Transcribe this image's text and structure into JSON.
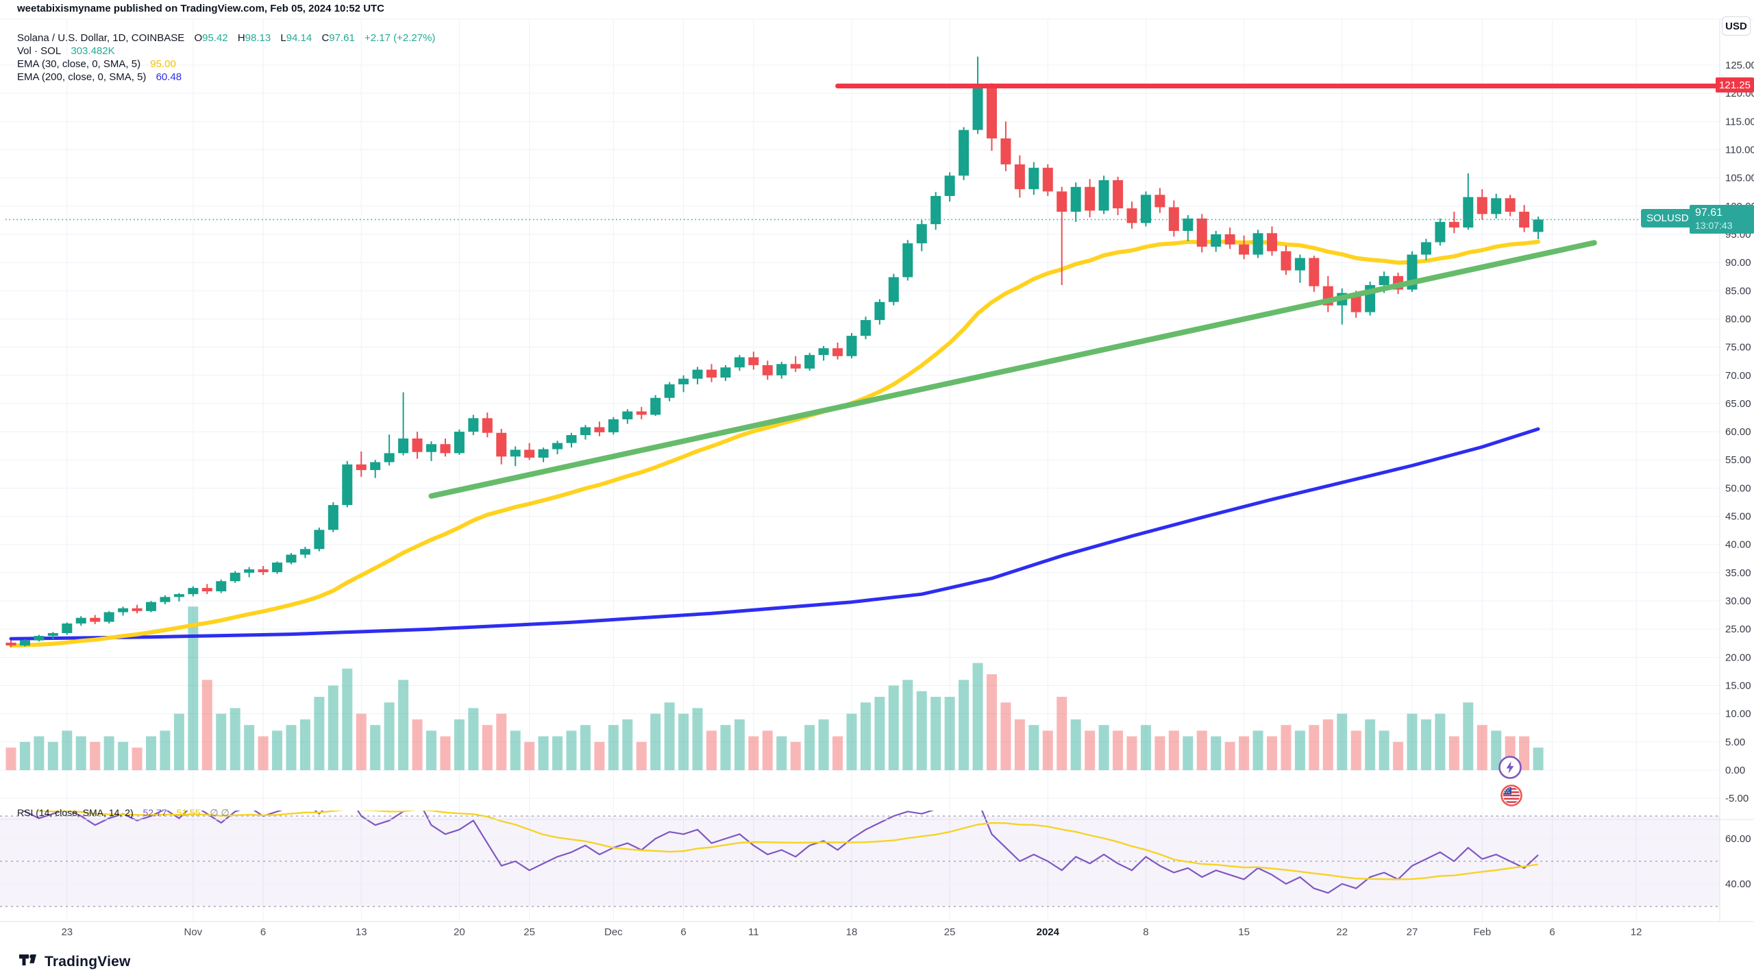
{
  "attribution": "weetabixismyname published on TradingView.com, Feb 05, 2024 10:52 UTC",
  "legend": {
    "symbol_title": "Solana / U.S. Dollar, 1D, COINBASE",
    "ohlc": [
      {
        "k": "O",
        "v": "95.42"
      },
      {
        "k": "H",
        "v": "98.13"
      },
      {
        "k": "L",
        "v": "94.14"
      },
      {
        "k": "C",
        "v": "97.61"
      }
    ],
    "change": "+2.17 (+2.27%)",
    "vol_label": "Vol · SOL",
    "vol_value": "303.482K",
    "ema30_label": "EMA (30, close, 0, SMA, 5)",
    "ema30_value": "95.00",
    "ema200_label": "EMA (200, close, 0, SMA, 5)",
    "ema200_value": "60.48"
  },
  "rsi_legend": {
    "label": "RSI (14, close, SMA, 14, 2)",
    "value": "52.77",
    "ma_value": "51.55",
    "extra": "∅  ∅"
  },
  "badges": {
    "usd": "USD",
    "resistance": "121.25",
    "symbol": "SOLUSD",
    "price": "97.61",
    "countdown": "13:07:43"
  },
  "footer": {
    "logo_text": "TradingView"
  },
  "colors": {
    "up": "#16a28c",
    "down": "#ef4d52",
    "vol_up": "#16a28c",
    "vol_down": "#ef5350",
    "ema30": "#ffd21e",
    "ema200": "#2d2df0",
    "rsi": "#7e57c2",
    "rsi_ma": "#f5d327",
    "resistance": "#f23645",
    "trend": "#66bb6a",
    "teal": "#2aa79a",
    "grid": "#eef1f7",
    "axis_text": "#363a45",
    "separator": "#e0e3eb",
    "rsi_band_fill": "#7e57c2"
  },
  "price_axis": {
    "min": -5,
    "max": 125,
    "step": 5
  },
  "rsi_axis": {
    "labels": [
      {
        "text": "60.00",
        "value": 60
      },
      {
        "text": "40.00",
        "value": 40
      }
    ]
  },
  "time_axis": {
    "labels": [
      {
        "text": "23",
        "index": 4,
        "bold": false
      },
      {
        "text": "Nov",
        "index": 13,
        "bold": false
      },
      {
        "text": "6",
        "index": 18,
        "bold": false
      },
      {
        "text": "13",
        "index": 25,
        "bold": false
      },
      {
        "text": "20",
        "index": 32,
        "bold": false
      },
      {
        "text": "25",
        "index": 37,
        "bold": false
      },
      {
        "text": "Dec",
        "index": 43,
        "bold": false
      },
      {
        "text": "6",
        "index": 48,
        "bold": false
      },
      {
        "text": "11",
        "index": 53,
        "bold": false
      },
      {
        "text": "18",
        "index": 60,
        "bold": false
      },
      {
        "text": "25",
        "index": 67,
        "bold": false
      },
      {
        "text": "2024",
        "index": 74,
        "bold": true
      },
      {
        "text": "8",
        "index": 81,
        "bold": false
      },
      {
        "text": "15",
        "index": 88,
        "bold": false
      },
      {
        "text": "22",
        "index": 95,
        "bold": false
      },
      {
        "text": "27",
        "index": 100,
        "bold": false
      },
      {
        "text": "Feb",
        "index": 105,
        "bold": false
      },
      {
        "text": "6",
        "index": 110,
        "bold": false
      },
      {
        "text": "12",
        "index": 116,
        "bold": false
      }
    ]
  },
  "chart_data": {
    "type": "candlestick",
    "title": "Solana / U.S. Dollar, 1D, COINBASE",
    "ylabel": "USD",
    "ylim": [
      -5,
      125
    ],
    "grid": true,
    "current_price": 97.61,
    "resistance": {
      "price": 121.3,
      "from_index": 59,
      "label": "121.25"
    },
    "trendline": {
      "from": {
        "index": 30,
        "price": 48.6
      },
      "to": {
        "index": 113,
        "price": 93.5
      }
    },
    "ema200_points": [
      [
        0,
        23.3
      ],
      [
        10,
        23.6
      ],
      [
        20,
        24.1
      ],
      [
        30,
        25.0
      ],
      [
        40,
        26.2
      ],
      [
        50,
        27.8
      ],
      [
        60,
        29.8
      ],
      [
        65,
        31.2
      ],
      [
        70,
        34.0
      ],
      [
        75,
        38.0
      ],
      [
        80,
        41.5
      ],
      [
        85,
        44.8
      ],
      [
        90,
        48.0
      ],
      [
        95,
        51.0
      ],
      [
        100,
        54.0
      ],
      [
        105,
        57.3
      ],
      [
        109,
        60.48
      ]
    ],
    "candles_format": [
      "open",
      "high",
      "low",
      "close",
      "volume_axis_units"
    ],
    "candles": [
      [
        22.6,
        23.0,
        21.8,
        22.1,
        4
      ],
      [
        22.1,
        23.2,
        21.9,
        23.0,
        5
      ],
      [
        23.0,
        24.0,
        22.8,
        23.8,
        6
      ],
      [
        23.8,
        24.5,
        23.2,
        24.3,
        5
      ],
      [
        24.3,
        26.2,
        24.0,
        26.0,
        7
      ],
      [
        26.0,
        27.3,
        25.6,
        27.0,
        6
      ],
      [
        27.0,
        27.5,
        25.9,
        26.3,
        5
      ],
      [
        26.3,
        28.2,
        26.0,
        28.0,
        6
      ],
      [
        28.0,
        29.0,
        27.4,
        28.7,
        5
      ],
      [
        28.7,
        29.3,
        27.8,
        28.2,
        4
      ],
      [
        28.2,
        30.0,
        28.0,
        29.8,
        6
      ],
      [
        29.8,
        31.0,
        29.4,
        30.7,
        7
      ],
      [
        30.7,
        31.4,
        29.9,
        31.2,
        10
      ],
      [
        31.2,
        32.6,
        30.8,
        32.3,
        29
      ],
      [
        32.3,
        33.0,
        31.2,
        31.7,
        16
      ],
      [
        31.7,
        33.8,
        31.4,
        33.5,
        10
      ],
      [
        33.5,
        35.3,
        33.2,
        35.0,
        11
      ],
      [
        35.0,
        36.0,
        34.2,
        35.6,
        8
      ],
      [
        35.6,
        36.2,
        34.6,
        35.1,
        6
      ],
      [
        35.1,
        37.0,
        34.8,
        36.8,
        7
      ],
      [
        36.8,
        38.5,
        36.5,
        38.2,
        8
      ],
      [
        38.2,
        39.6,
        37.6,
        39.2,
        9
      ],
      [
        39.2,
        43.0,
        38.8,
        42.6,
        13
      ],
      [
        42.6,
        47.5,
        42.2,
        47.0,
        15
      ],
      [
        47.0,
        54.8,
        46.6,
        54.2,
        18
      ],
      [
        54.2,
        56.5,
        52.0,
        53.2,
        10
      ],
      [
        53.2,
        55.0,
        51.8,
        54.6,
        8
      ],
      [
        54.6,
        59.5,
        54.0,
        56.2,
        12
      ],
      [
        56.2,
        67.0,
        55.8,
        58.8,
        16
      ],
      [
        58.8,
        60.0,
        55.2,
        56.4,
        9
      ],
      [
        56.4,
        58.3,
        54.8,
        57.8,
        7
      ],
      [
        57.8,
        58.8,
        55.6,
        56.2,
        6
      ],
      [
        56.2,
        60.4,
        55.9,
        60.0,
        9
      ],
      [
        60.0,
        63.0,
        59.4,
        62.4,
        11
      ],
      [
        62.4,
        63.4,
        59.0,
        59.8,
        8
      ],
      [
        59.8,
        60.5,
        54.2,
        55.6,
        10
      ],
      [
        55.6,
        57.4,
        53.9,
        56.8,
        7
      ],
      [
        56.8,
        58.0,
        55.0,
        55.4,
        5
      ],
      [
        55.4,
        57.2,
        54.6,
        56.9,
        6
      ],
      [
        56.9,
        58.4,
        56.0,
        58.0,
        6
      ],
      [
        58.0,
        59.8,
        57.2,
        59.4,
        7
      ],
      [
        59.4,
        61.2,
        58.6,
        60.8,
        8
      ],
      [
        60.8,
        61.8,
        59.2,
        59.9,
        5
      ],
      [
        59.9,
        62.6,
        59.5,
        62.2,
        8
      ],
      [
        62.2,
        64.0,
        61.4,
        63.6,
        9
      ],
      [
        63.6,
        64.4,
        62.2,
        63.0,
        5
      ],
      [
        63.0,
        66.5,
        62.8,
        66.0,
        10
      ],
      [
        66.0,
        68.8,
        65.4,
        68.4,
        12
      ],
      [
        68.4,
        70.0,
        67.0,
        69.4,
        10
      ],
      [
        69.4,
        71.5,
        68.4,
        71.0,
        11
      ],
      [
        71.0,
        72.0,
        68.8,
        69.6,
        7
      ],
      [
        69.6,
        71.8,
        69.0,
        71.4,
        8
      ],
      [
        71.4,
        73.6,
        70.8,
        73.2,
        9
      ],
      [
        73.2,
        74.2,
        71.0,
        71.8,
        6
      ],
      [
        71.8,
        72.6,
        69.2,
        70.0,
        7
      ],
      [
        70.0,
        72.4,
        69.4,
        72.0,
        6
      ],
      [
        72.0,
        73.4,
        70.6,
        71.2,
        5
      ],
      [
        71.2,
        74.0,
        70.8,
        73.6,
        8
      ],
      [
        73.6,
        75.2,
        72.6,
        74.8,
        9
      ],
      [
        74.8,
        75.8,
        72.8,
        73.4,
        6
      ],
      [
        73.4,
        77.5,
        73.0,
        77.0,
        10
      ],
      [
        77.0,
        80.4,
        76.4,
        79.8,
        12
      ],
      [
        79.8,
        83.5,
        79.0,
        83.0,
        13
      ],
      [
        83.0,
        88.0,
        82.4,
        87.4,
        15
      ],
      [
        87.4,
        94.0,
        86.8,
        93.4,
        16
      ],
      [
        93.4,
        97.5,
        92.0,
        96.8,
        14
      ],
      [
        96.8,
        102.5,
        95.8,
        101.8,
        13
      ],
      [
        101.8,
        106.0,
        100.8,
        105.4,
        13
      ],
      [
        105.4,
        114.0,
        104.6,
        113.5,
        16
      ],
      [
        113.5,
        126.5,
        112.8,
        121.3,
        19
      ],
      [
        121.3,
        121.8,
        109.8,
        112.0,
        17
      ],
      [
        112.0,
        115.0,
        106.2,
        107.4,
        12
      ],
      [
        107.4,
        109.0,
        101.5,
        103.0,
        9
      ],
      [
        103.0,
        107.8,
        102.0,
        106.8,
        8
      ],
      [
        106.8,
        107.4,
        101.8,
        102.6,
        7
      ],
      [
        102.6,
        103.4,
        86.0,
        99.0,
        13
      ],
      [
        99.0,
        104.2,
        97.2,
        103.4,
        9
      ],
      [
        103.4,
        104.8,
        98.0,
        99.2,
        7
      ],
      [
        99.2,
        105.4,
        98.6,
        104.6,
        8
      ],
      [
        104.6,
        105.2,
        98.4,
        99.6,
        7
      ],
      [
        99.6,
        100.8,
        96.0,
        97.0,
        6
      ],
      [
        97.0,
        102.6,
        96.4,
        102.0,
        8
      ],
      [
        102.0,
        103.2,
        98.8,
        99.8,
        6
      ],
      [
        99.8,
        101.0,
        94.6,
        95.6,
        7
      ],
      [
        95.6,
        98.4,
        93.8,
        97.8,
        6
      ],
      [
        97.8,
        98.6,
        91.8,
        92.8,
        7
      ],
      [
        92.8,
        95.6,
        91.9,
        95.0,
        6
      ],
      [
        95.0,
        96.2,
        92.4,
        93.2,
        5
      ],
      [
        93.2,
        94.8,
        90.6,
        91.4,
        6
      ],
      [
        91.4,
        95.8,
        90.8,
        95.2,
        7
      ],
      [
        95.2,
        96.4,
        91.2,
        92.0,
        6
      ],
      [
        92.0,
        93.0,
        87.8,
        88.6,
        8
      ],
      [
        88.6,
        91.4,
        86.4,
        90.8,
        7
      ],
      [
        90.8,
        91.2,
        84.8,
        85.8,
        8
      ],
      [
        85.8,
        87.6,
        81.2,
        82.4,
        9
      ],
      [
        82.4,
        85.4,
        79.0,
        84.6,
        10
      ],
      [
        84.6,
        85.0,
        80.2,
        81.2,
        7
      ],
      [
        81.2,
        86.6,
        80.6,
        86.0,
        9
      ],
      [
        86.0,
        88.4,
        84.6,
        87.6,
        7
      ],
      [
        87.6,
        88.2,
        84.4,
        85.2,
        5
      ],
      [
        85.2,
        92.0,
        84.8,
        91.4,
        10
      ],
      [
        91.4,
        94.2,
        90.4,
        93.6,
        9
      ],
      [
        93.6,
        97.8,
        93.0,
        97.2,
        10
      ],
      [
        97.2,
        99.0,
        95.2,
        96.2,
        6
      ],
      [
        96.2,
        105.8,
        95.8,
        101.6,
        12
      ],
      [
        101.6,
        103.0,
        97.6,
        98.6,
        8
      ],
      [
        98.6,
        102.2,
        97.8,
        101.4,
        7
      ],
      [
        101.4,
        102.0,
        98.2,
        99.0,
        6
      ],
      [
        99.0,
        100.2,
        95.4,
        96.2,
        6
      ],
      [
        95.42,
        98.13,
        94.14,
        97.61,
        4
      ]
    ],
    "rsi": [
      76,
      72,
      69,
      71,
      73,
      70,
      66,
      69,
      71,
      68,
      70,
      73,
      69,
      75,
      71,
      67,
      72,
      74,
      70,
      72,
      74,
      76,
      71,
      77,
      80,
      70,
      66,
      68,
      72,
      78,
      66,
      62,
      64,
      68,
      58,
      48,
      50,
      46,
      49,
      52,
      54,
      57,
      53,
      56,
      58,
      55,
      60,
      63,
      62,
      64,
      58,
      60,
      62,
      57,
      53,
      55,
      52,
      57,
      59,
      55,
      60,
      64,
      67,
      70,
      72,
      71,
      73,
      74,
      76,
      77,
      62,
      56,
      50,
      53,
      50,
      46,
      52,
      49,
      53,
      49,
      46,
      52,
      48,
      45,
      47,
      43,
      46,
      44,
      42,
      47,
      44,
      40,
      43,
      38,
      36,
      40,
      38,
      43,
      45,
      42,
      48,
      51,
      54,
      50,
      56,
      51,
      53,
      50,
      47,
      52.8
    ],
    "rsi_bands": [
      70,
      50,
      30
    ],
    "rsi_axis_labels": [
      60,
      40
    ]
  }
}
